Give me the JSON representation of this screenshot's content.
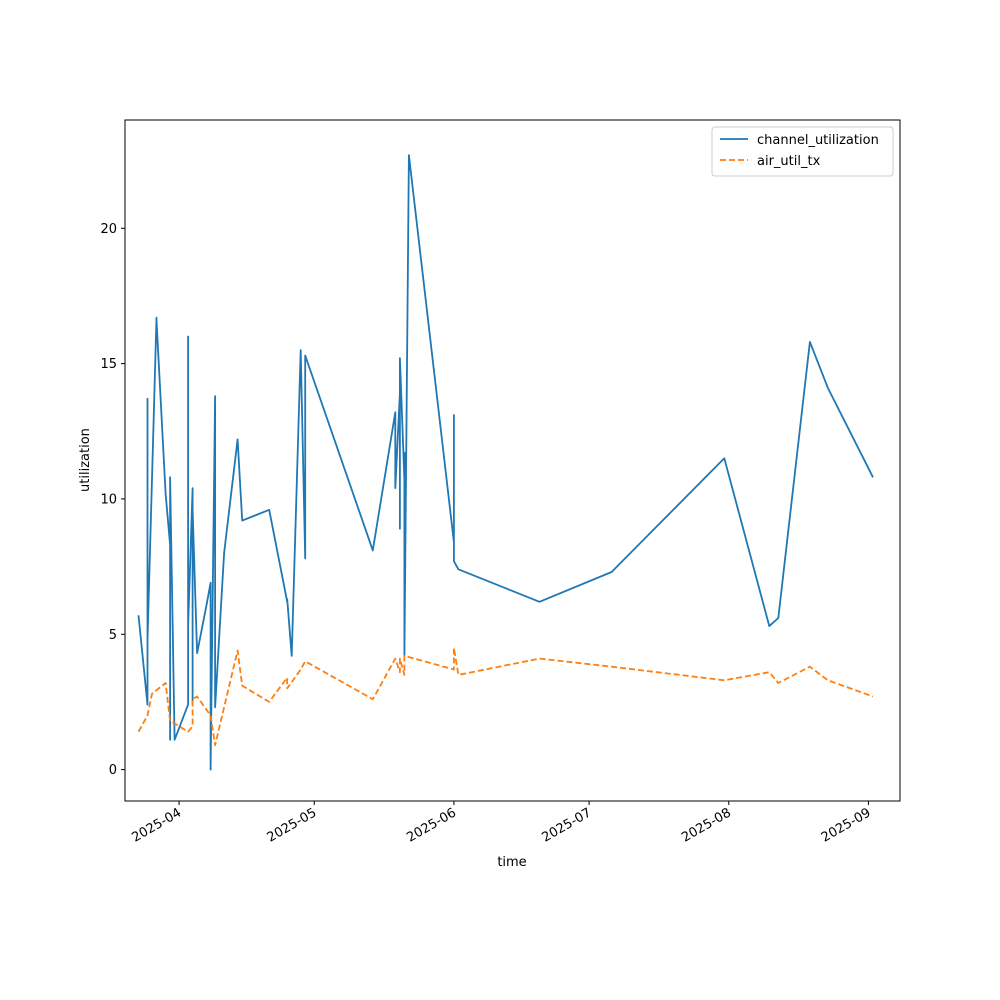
{
  "chart_data": {
    "type": "line",
    "title": "",
    "xlabel": "time",
    "ylabel": "utilization",
    "x_type": "date",
    "xlim": [
      "2025-03-20",
      "2025-09-08"
    ],
    "ylim": [
      -1.16,
      24.0
    ],
    "x_ticks": [
      {
        "value": "2025-04-01",
        "label": "2025-04"
      },
      {
        "value": "2025-05-01",
        "label": "2025-05"
      },
      {
        "value": "2025-06-01",
        "label": "2025-06"
      },
      {
        "value": "2025-07-01",
        "label": "2025-07"
      },
      {
        "value": "2025-08-01",
        "label": "2025-08"
      },
      {
        "value": "2025-09-01",
        "label": "2025-09"
      }
    ],
    "y_ticks": [
      0,
      5,
      10,
      15,
      20
    ],
    "grid": false,
    "legend": {
      "position": "top-right"
    },
    "series": [
      {
        "name": "channel_utilization",
        "color": "#1f77b4",
        "style": "solid",
        "points": [
          [
            "2025-03-23",
            5.7
          ],
          [
            "2025-03-25",
            2.4
          ],
          [
            "2025-03-25",
            13.7
          ],
          [
            "2025-03-25",
            4.8
          ],
          [
            "2025-03-27",
            16.7
          ],
          [
            "2025-03-27",
            16.6
          ],
          [
            "2025-03-29",
            10.2
          ],
          [
            "2025-03-30",
            8.3
          ],
          [
            "2025-03-30",
            1.1
          ],
          [
            "2025-03-30",
            10.8
          ],
          [
            "2025-03-31",
            1.1
          ],
          [
            "2025-04-03",
            2.4
          ],
          [
            "2025-04-03",
            16.0
          ],
          [
            "2025-04-03",
            5.3
          ],
          [
            "2025-04-04",
            10.4
          ],
          [
            "2025-04-04",
            2.4
          ],
          [
            "2025-04-04",
            9.6
          ],
          [
            "2025-04-05",
            4.3
          ],
          [
            "2025-04-07",
            6.0
          ],
          [
            "2025-04-08",
            6.9
          ],
          [
            "2025-04-08",
            0.0
          ],
          [
            "2025-04-09",
            13.8
          ],
          [
            "2025-04-09",
            2.3
          ],
          [
            "2025-04-11",
            8.0
          ],
          [
            "2025-04-14",
            12.2
          ],
          [
            "2025-04-15",
            9.2
          ],
          [
            "2025-04-21",
            9.6
          ],
          [
            "2025-04-25",
            6.2
          ],
          [
            "2025-04-25",
            6.3
          ],
          [
            "2025-04-26",
            4.2
          ],
          [
            "2025-04-28",
            15.5
          ],
          [
            "2025-04-29",
            7.8
          ],
          [
            "2025-04-29",
            15.3
          ],
          [
            "2025-05-14",
            8.1
          ],
          [
            "2025-05-19",
            13.2
          ],
          [
            "2025-05-19",
            10.4
          ],
          [
            "2025-05-20",
            13.9
          ],
          [
            "2025-05-20",
            8.9
          ],
          [
            "2025-05-20",
            15.2
          ],
          [
            "2025-05-21",
            10.7
          ],
          [
            "2025-05-21",
            11.7
          ],
          [
            "2025-05-21",
            4.2
          ],
          [
            "2025-05-22",
            22.7
          ],
          [
            "2025-06-01",
            8.4
          ],
          [
            "2025-06-01",
            13.1
          ],
          [
            "2025-06-01",
            7.7
          ],
          [
            "2025-06-02",
            7.4
          ],
          [
            "2025-06-20",
            6.2
          ],
          [
            "2025-07-06",
            7.3
          ],
          [
            "2025-07-31",
            11.5
          ],
          [
            "2025-08-10",
            5.3
          ],
          [
            "2025-08-12",
            5.6
          ],
          [
            "2025-08-19",
            15.8
          ],
          [
            "2025-08-23",
            14.1
          ],
          [
            "2025-09-02",
            10.8
          ]
        ]
      },
      {
        "name": "air_util_tx",
        "color": "#ff7f0e",
        "style": "dashed",
        "points": [
          [
            "2025-03-23",
            1.4
          ],
          [
            "2025-03-25",
            2.0
          ],
          [
            "2025-03-26",
            2.8
          ],
          [
            "2025-03-29",
            3.2
          ],
          [
            "2025-03-30",
            1.8
          ],
          [
            "2025-04-03",
            1.4
          ],
          [
            "2025-04-03",
            1.4
          ],
          [
            "2025-04-04",
            1.6
          ],
          [
            "2025-04-04",
            2.6
          ],
          [
            "2025-04-05",
            2.7
          ],
          [
            "2025-04-08",
            2.0
          ],
          [
            "2025-04-09",
            0.9
          ],
          [
            "2025-04-14",
            4.4
          ],
          [
            "2025-04-15",
            3.1
          ],
          [
            "2025-04-21",
            2.5
          ],
          [
            "2025-04-25",
            3.4
          ],
          [
            "2025-04-25",
            3.0
          ],
          [
            "2025-04-28",
            3.7
          ],
          [
            "2025-04-29",
            4.0
          ],
          [
            "2025-05-14",
            2.6
          ],
          [
            "2025-05-19",
            4.1
          ],
          [
            "2025-05-20",
            3.6
          ],
          [
            "2025-05-20",
            4.1
          ],
          [
            "2025-05-21",
            3.5
          ],
          [
            "2025-05-21",
            3.9
          ],
          [
            "2025-05-21",
            4.2
          ],
          [
            "2025-06-01",
            3.7
          ],
          [
            "2025-06-01",
            4.5
          ],
          [
            "2025-06-02",
            3.5
          ],
          [
            "2025-06-20",
            4.1
          ],
          [
            "2025-07-06",
            3.8
          ],
          [
            "2025-07-31",
            3.3
          ],
          [
            "2025-08-10",
            3.6
          ],
          [
            "2025-08-12",
            3.2
          ],
          [
            "2025-08-19",
            3.8
          ],
          [
            "2025-08-23",
            3.3
          ],
          [
            "2025-09-02",
            2.7
          ]
        ]
      }
    ]
  }
}
